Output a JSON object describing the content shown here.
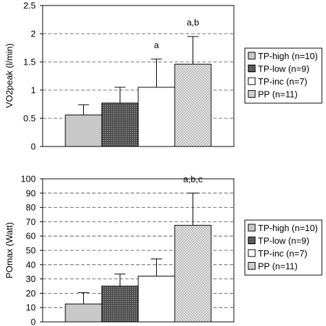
{
  "chart_data": [
    {
      "type": "bar",
      "ylabel": "VO2peak (l/min)",
      "xlabel": "",
      "ylim": [
        0,
        2.5
      ],
      "yticks": [
        "0",
        "0.5",
        "1",
        "1.5",
        "2",
        "2.5"
      ],
      "ytick_values": [
        0,
        0.5,
        1,
        1.5,
        2,
        2.5
      ],
      "grid": "horizontal dashed",
      "legend_position": "right",
      "series": [
        {
          "name": "TP-high (n=10)",
          "value": 0.56,
          "error": 0.18,
          "annotation": "",
          "color": "#c8c8c8",
          "pattern": "solid"
        },
        {
          "name": "TP-low (n=9)",
          "value": 0.77,
          "error": 0.28,
          "annotation": "",
          "color": "#555555",
          "pattern": "dots"
        },
        {
          "name": "TP-inc (n=7)",
          "value": 1.05,
          "error": 0.5,
          "annotation": "a",
          "color": "#ffffff",
          "pattern": "solid"
        },
        {
          "name": "PP (n=11)",
          "value": 1.46,
          "error": 0.49,
          "annotation": "a,b",
          "color": "#dcdcdc",
          "pattern": "crosshatch"
        }
      ]
    },
    {
      "type": "bar",
      "ylabel": "POmax (Watt)",
      "xlabel": "",
      "ylim": [
        0,
        100
      ],
      "yticks": [
        "0",
        "10",
        "20",
        "30",
        "40",
        "50",
        "60",
        "70",
        "80",
        "90",
        "100"
      ],
      "ytick_values": [
        0,
        10,
        20,
        30,
        40,
        50,
        60,
        70,
        80,
        90,
        100
      ],
      "grid": "horizontal dashed",
      "legend_position": "right",
      "series": [
        {
          "name": "TP-high (n=10)",
          "value": 12.5,
          "error": 8,
          "annotation": "",
          "color": "#c8c8c8",
          "pattern": "solid"
        },
        {
          "name": "TP-low (n=9)",
          "value": 25,
          "error": 8.5,
          "annotation": "",
          "color": "#555555",
          "pattern": "dots"
        },
        {
          "name": "TP-inc (n=7)",
          "value": 32,
          "error": 12,
          "annotation": "",
          "color": "#ffffff",
          "pattern": "solid"
        },
        {
          "name": "PP (n=11)",
          "value": 67.5,
          "error": 22.5,
          "annotation": "a,b,c",
          "color": "#dcdcdc",
          "pattern": "crosshatch"
        }
      ]
    }
  ]
}
